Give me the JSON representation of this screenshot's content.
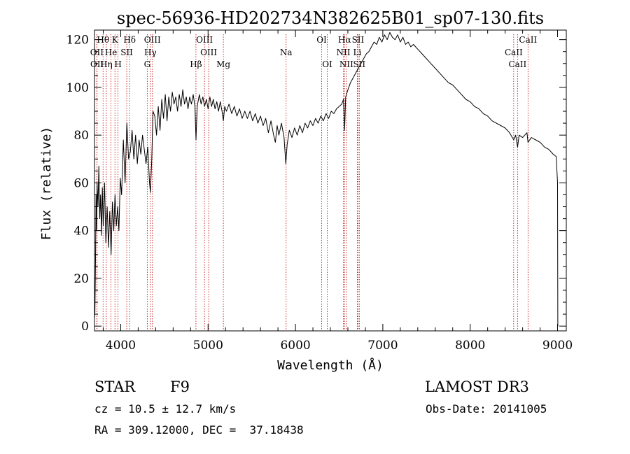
{
  "chart_data": {
    "type": "line",
    "title": "spec-56936-HD202734N382625B01_sp07-130.fits",
    "xlabel": "Wavelength (Å)",
    "ylabel": "Flux (relative)",
    "xlim": [
      3700,
      9100
    ],
    "ylim": [
      -2,
      124
    ],
    "x_ticks": [
      4000,
      5000,
      6000,
      7000,
      8000,
      9000
    ],
    "y_ticks": [
      0,
      20,
      40,
      60,
      80,
      100,
      120
    ],
    "series": [
      {
        "name": "spectrum",
        "points": [
          [
            3700,
            3
          ],
          [
            3705,
            6
          ],
          [
            3712,
            28
          ],
          [
            3718,
            55
          ],
          [
            3724,
            40
          ],
          [
            3730,
            60
          ],
          [
            3740,
            50
          ],
          [
            3750,
            67
          ],
          [
            3760,
            45
          ],
          [
            3770,
            55
          ],
          [
            3780,
            38
          ],
          [
            3790,
            58
          ],
          [
            3800,
            42
          ],
          [
            3815,
            60
          ],
          [
            3830,
            35
          ],
          [
            3845,
            50
          ],
          [
            3860,
            33
          ],
          [
            3875,
            48
          ],
          [
            3890,
            30
          ],
          [
            3905,
            52
          ],
          [
            3920,
            40
          ],
          [
            3935,
            55
          ],
          [
            3950,
            42
          ],
          [
            3965,
            50
          ],
          [
            3980,
            40
          ],
          [
            3995,
            62
          ],
          [
            4010,
            55
          ],
          [
            4030,
            78
          ],
          [
            4050,
            60
          ],
          [
            4070,
            85
          ],
          [
            4090,
            70
          ],
          [
            4110,
            73
          ],
          [
            4130,
            82
          ],
          [
            4150,
            70
          ],
          [
            4170,
            80
          ],
          [
            4190,
            68
          ],
          [
            4210,
            78
          ],
          [
            4230,
            72
          ],
          [
            4250,
            80
          ],
          [
            4270,
            74
          ],
          [
            4290,
            68
          ],
          [
            4310,
            75
          ],
          [
            4330,
            60
          ],
          [
            4340,
            56
          ],
          [
            4355,
            70
          ],
          [
            4370,
            90
          ],
          [
            4390,
            88
          ],
          [
            4410,
            80
          ],
          [
            4430,
            92
          ],
          [
            4450,
            82
          ],
          [
            4470,
            95
          ],
          [
            4490,
            87
          ],
          [
            4510,
            97
          ],
          [
            4530,
            86
          ],
          [
            4550,
            96
          ],
          [
            4570,
            90
          ],
          [
            4590,
            98
          ],
          [
            4610,
            93
          ],
          [
            4630,
            96
          ],
          [
            4650,
            90
          ],
          [
            4670,
            97
          ],
          [
            4690,
            92
          ],
          [
            4710,
            99
          ],
          [
            4730,
            93
          ],
          [
            4750,
            96
          ],
          [
            4770,
            91
          ],
          [
            4790,
            96
          ],
          [
            4810,
            93
          ],
          [
            4830,
            97
          ],
          [
            4850,
            92
          ],
          [
            4862,
            78
          ],
          [
            4875,
            92
          ],
          [
            4900,
            97
          ],
          [
            4920,
            93
          ],
          [
            4940,
            96
          ],
          [
            4960,
            92
          ],
          [
            4980,
            95
          ],
          [
            5000,
            91
          ],
          [
            5020,
            96
          ],
          [
            5040,
            92
          ],
          [
            5060,
            95
          ],
          [
            5080,
            91
          ],
          [
            5100,
            94
          ],
          [
            5120,
            90
          ],
          [
            5140,
            94
          ],
          [
            5160,
            90
          ],
          [
            5175,
            86
          ],
          [
            5190,
            92
          ],
          [
            5210,
            90
          ],
          [
            5240,
            93
          ],
          [
            5270,
            89
          ],
          [
            5300,
            92
          ],
          [
            5330,
            88
          ],
          [
            5360,
            91
          ],
          [
            5390,
            87
          ],
          [
            5420,
            90
          ],
          [
            5450,
            87
          ],
          [
            5480,
            90
          ],
          [
            5510,
            86
          ],
          [
            5540,
            89
          ],
          [
            5570,
            85
          ],
          [
            5600,
            88
          ],
          [
            5630,
            84
          ],
          [
            5660,
            87
          ],
          [
            5690,
            81
          ],
          [
            5720,
            86
          ],
          [
            5750,
            80
          ],
          [
            5770,
            77
          ],
          [
            5790,
            84
          ],
          [
            5810,
            80
          ],
          [
            5840,
            85
          ],
          [
            5870,
            79
          ],
          [
            5890,
            68
          ],
          [
            5905,
            76
          ],
          [
            5930,
            82
          ],
          [
            5960,
            79
          ],
          [
            5990,
            83
          ],
          [
            6020,
            80
          ],
          [
            6050,
            84
          ],
          [
            6080,
            81
          ],
          [
            6110,
            85
          ],
          [
            6140,
            83
          ],
          [
            6170,
            86
          ],
          [
            6200,
            84
          ],
          [
            6230,
            87
          ],
          [
            6260,
            85
          ],
          [
            6290,
            88
          ],
          [
            6320,
            86
          ],
          [
            6350,
            89
          ],
          [
            6380,
            87
          ],
          [
            6410,
            90
          ],
          [
            6440,
            89
          ],
          [
            6470,
            91
          ],
          [
            6500,
            92
          ],
          [
            6530,
            93
          ],
          [
            6550,
            95
          ],
          [
            6563,
            82
          ],
          [
            6575,
            96
          ],
          [
            6600,
            99
          ],
          [
            6630,
            102
          ],
          [
            6660,
            104
          ],
          [
            6690,
            106
          ],
          [
            6720,
            108
          ],
          [
            6750,
            110
          ],
          [
            6780,
            112
          ],
          [
            6810,
            114
          ],
          [
            6840,
            115
          ],
          [
            6870,
            117
          ],
          [
            6900,
            119
          ],
          [
            6930,
            118
          ],
          [
            6960,
            121
          ],
          [
            6990,
            119
          ],
          [
            7020,
            122
          ],
          [
            7050,
            120
          ],
          [
            7080,
            123
          ],
          [
            7110,
            121
          ],
          [
            7140,
            120
          ],
          [
            7170,
            122
          ],
          [
            7200,
            119
          ],
          [
            7230,
            121
          ],
          [
            7260,
            118
          ],
          [
            7290,
            119
          ],
          [
            7320,
            117
          ],
          [
            7350,
            118
          ],
          [
            7400,
            116
          ],
          [
            7450,
            114
          ],
          [
            7500,
            112
          ],
          [
            7550,
            110
          ],
          [
            7600,
            108
          ],
          [
            7650,
            106
          ],
          [
            7700,
            104
          ],
          [
            7750,
            102
          ],
          [
            7800,
            101
          ],
          [
            7850,
            99
          ],
          [
            7900,
            97
          ],
          [
            7950,
            95
          ],
          [
            8000,
            94
          ],
          [
            8050,
            92
          ],
          [
            8100,
            91
          ],
          [
            8150,
            89
          ],
          [
            8200,
            88
          ],
          [
            8250,
            86
          ],
          [
            8300,
            85
          ],
          [
            8350,
            84
          ],
          [
            8400,
            83
          ],
          [
            8450,
            81
          ],
          [
            8498,
            78
          ],
          [
            8520,
            80
          ],
          [
            8542,
            75
          ],
          [
            8560,
            80
          ],
          [
            8600,
            79
          ],
          [
            8650,
            81
          ],
          [
            8662,
            77
          ],
          [
            8700,
            79
          ],
          [
            8750,
            78
          ],
          [
            8800,
            77
          ],
          [
            8850,
            75
          ],
          [
            8900,
            74
          ],
          [
            8950,
            72
          ],
          [
            8985,
            71
          ],
          [
            9000,
            60
          ],
          [
            9003,
            0
          ]
        ]
      }
    ],
    "line_markers": [
      {
        "label": "Hθ",
        "x": 3798,
        "row": 0
      },
      {
        "label": "K",
        "x": 3934,
        "row": 0
      },
      {
        "label": "Hδ",
        "x": 4102,
        "row": 0
      },
      {
        "label": "OIII",
        "x": 4363,
        "row": 0
      },
      {
        "label": "OIII",
        "x": 4959,
        "row": 0
      },
      {
        "label": "OI",
        "x": 6300,
        "row": 0
      },
      {
        "label": "Hα",
        "x": 6563,
        "row": 0
      },
      {
        "label": "SII",
        "x": 6716,
        "row": 0
      },
      {
        "label": "CaII",
        "x": 8662,
        "row": 0
      },
      {
        "label": "OII",
        "x": 3727,
        "row": 1
      },
      {
        "label": "He",
        "x": 3889,
        "row": 1
      },
      {
        "label": "SII",
        "x": 4069,
        "row": 1
      },
      {
        "label": "Hγ",
        "x": 4340,
        "row": 1
      },
      {
        "label": "OIII",
        "x": 5007,
        "row": 1
      },
      {
        "label": "Na",
        "x": 5893,
        "row": 1
      },
      {
        "label": "NII",
        "x": 6548,
        "row": 1
      },
      {
        "label": "Li",
        "x": 6708,
        "row": 1
      },
      {
        "label": "CaII",
        "x": 8498,
        "row": 1
      },
      {
        "label": "OII",
        "x": 3729,
        "row": 2
      },
      {
        "label": "Hη",
        "x": 3835,
        "row": 2
      },
      {
        "label": "H",
        "x": 3969,
        "row": 2
      },
      {
        "label": "G",
        "x": 4304,
        "row": 2
      },
      {
        "label": "Hβ",
        "x": 4861,
        "row": 2
      },
      {
        "label": "Mg",
        "x": 5175,
        "row": 2
      },
      {
        "label": "OI",
        "x": 6364,
        "row": 2
      },
      {
        "label": "NII",
        "x": 6583,
        "row": 2
      },
      {
        "label": "SII",
        "x": 6731,
        "row": 2
      },
      {
        "label": "CaII",
        "x": 8542,
        "row": 2
      }
    ]
  },
  "info": {
    "object_class": "STAR",
    "subclass": "F9",
    "survey": "LAMOST DR3",
    "redshift": "cz = 10.5 ± 12.7 km/s",
    "obs_date": "Obs-Date: 20141005",
    "coords": "RA = 309.12000, DEC =  37.18438"
  },
  "colors": {
    "axis": "#000000",
    "spectrum": "#000000",
    "marker": "#c00000",
    "background": "#ffffff"
  }
}
